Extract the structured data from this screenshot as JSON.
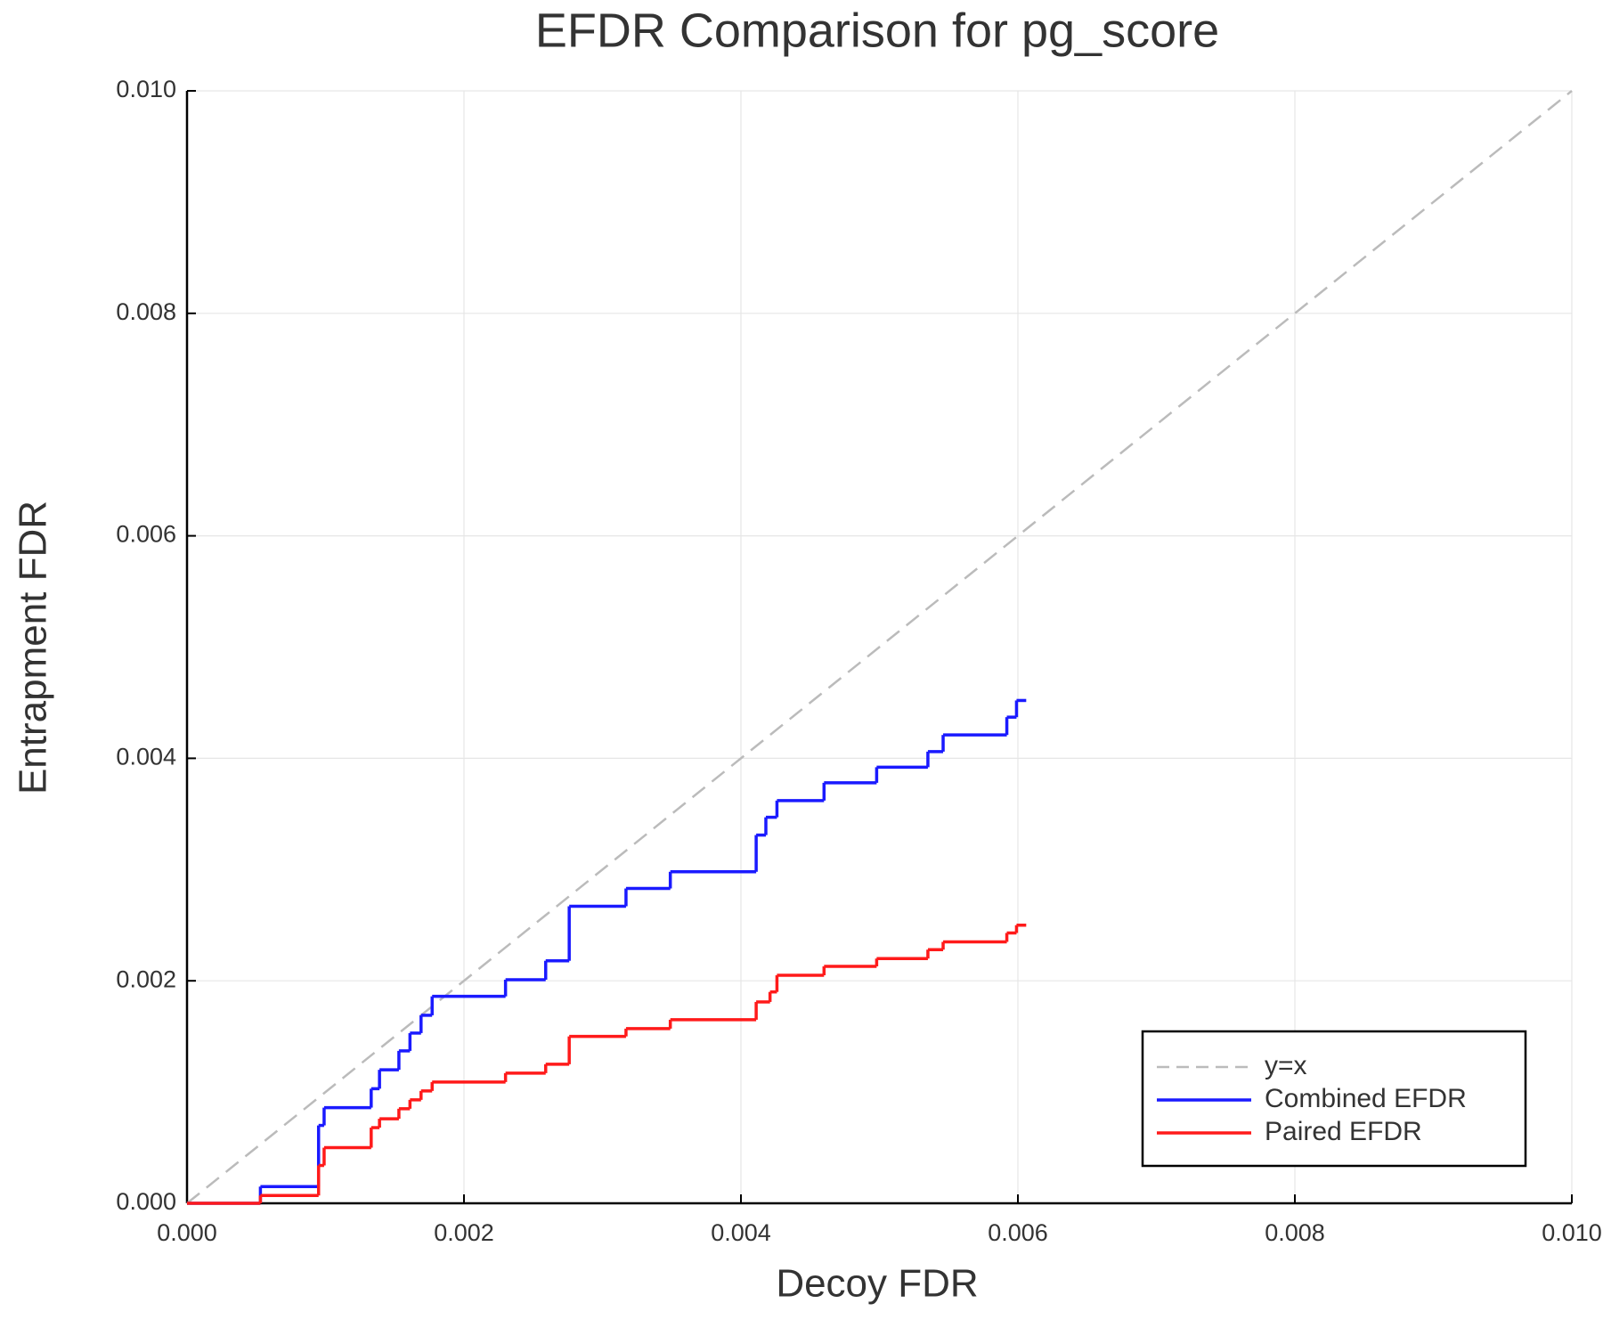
{
  "chart_data": {
    "type": "line",
    "title": "EFDR Comparison for pg_score",
    "x_label": "Decoy FDR",
    "y_label": "Entrapment FDR",
    "xlim": [
      0,
      0.01
    ],
    "ylim": [
      0,
      0.01
    ],
    "xticks": [
      {
        "value": 0,
        "label": "0.000"
      },
      {
        "value": 0.002,
        "label": "0.002"
      },
      {
        "value": 0.004,
        "label": "0.004"
      },
      {
        "value": 0.006,
        "label": "0.006"
      },
      {
        "value": 0.008,
        "label": "0.008"
      },
      {
        "value": 0.01,
        "label": "0.010"
      }
    ],
    "yticks": [
      {
        "value": 0,
        "label": "0.000"
      },
      {
        "value": 0.002,
        "label": "0.002"
      },
      {
        "value": 0.004,
        "label": "0.004"
      },
      {
        "value": 0.006,
        "label": "0.006"
      },
      {
        "value": 0.008,
        "label": "0.008"
      },
      {
        "value": 0.01,
        "label": "0.010"
      }
    ],
    "grid": true,
    "legend": "bottom-right",
    "series": [
      {
        "name": "y=x",
        "color": "#bbbbbb",
        "dash": true,
        "drawstyle": "default",
        "x": [
          0,
          0.01
        ],
        "values": [
          0,
          0.01
        ]
      },
      {
        "name": "Combined EFDR",
        "color": "#1a1aff",
        "dash": false,
        "drawstyle": "steps-post",
        "x": [
          0,
          0.00053,
          0.00095,
          0.00099,
          0.00133,
          0.00139,
          0.00153,
          0.00161,
          0.00169,
          0.00177,
          0.0023,
          0.00259,
          0.00276,
          0.00317,
          0.00349,
          0.00411,
          0.00418,
          0.00426,
          0.0046,
          0.00498,
          0.00535,
          0.00546,
          0.00592,
          0.00599,
          0.00606
        ],
        "values": [
          0,
          0.00015,
          0.0007,
          0.00086,
          0.00103,
          0.0012,
          0.00137,
          0.00153,
          0.00169,
          0.00186,
          0.00201,
          0.00218,
          0.00267,
          0.00283,
          0.00298,
          0.00331,
          0.00347,
          0.00362,
          0.00378,
          0.00392,
          0.00406,
          0.00421,
          0.00437,
          0.00452,
          0.00452
        ]
      },
      {
        "name": "Paired EFDR",
        "color": "#ff1a1a",
        "dash": false,
        "drawstyle": "steps-post",
        "x": [
          0,
          0.00053,
          0.00095,
          0.00099,
          0.00133,
          0.00139,
          0.00153,
          0.00161,
          0.00169,
          0.00177,
          0.0023,
          0.00259,
          0.00276,
          0.00317,
          0.00349,
          0.00411,
          0.00421,
          0.00426,
          0.0046,
          0.00498,
          0.00535,
          0.00546,
          0.00592,
          0.00599,
          0.00606
        ],
        "values": [
          0,
          7e-05,
          0.00034,
          0.0005,
          0.00068,
          0.00076,
          0.00085,
          0.00093,
          0.00101,
          0.00109,
          0.00117,
          0.00125,
          0.0015,
          0.00157,
          0.00165,
          0.00181,
          0.0019,
          0.00205,
          0.00213,
          0.0022,
          0.00228,
          0.00235,
          0.00243,
          0.0025,
          0.0025
        ]
      }
    ]
  }
}
